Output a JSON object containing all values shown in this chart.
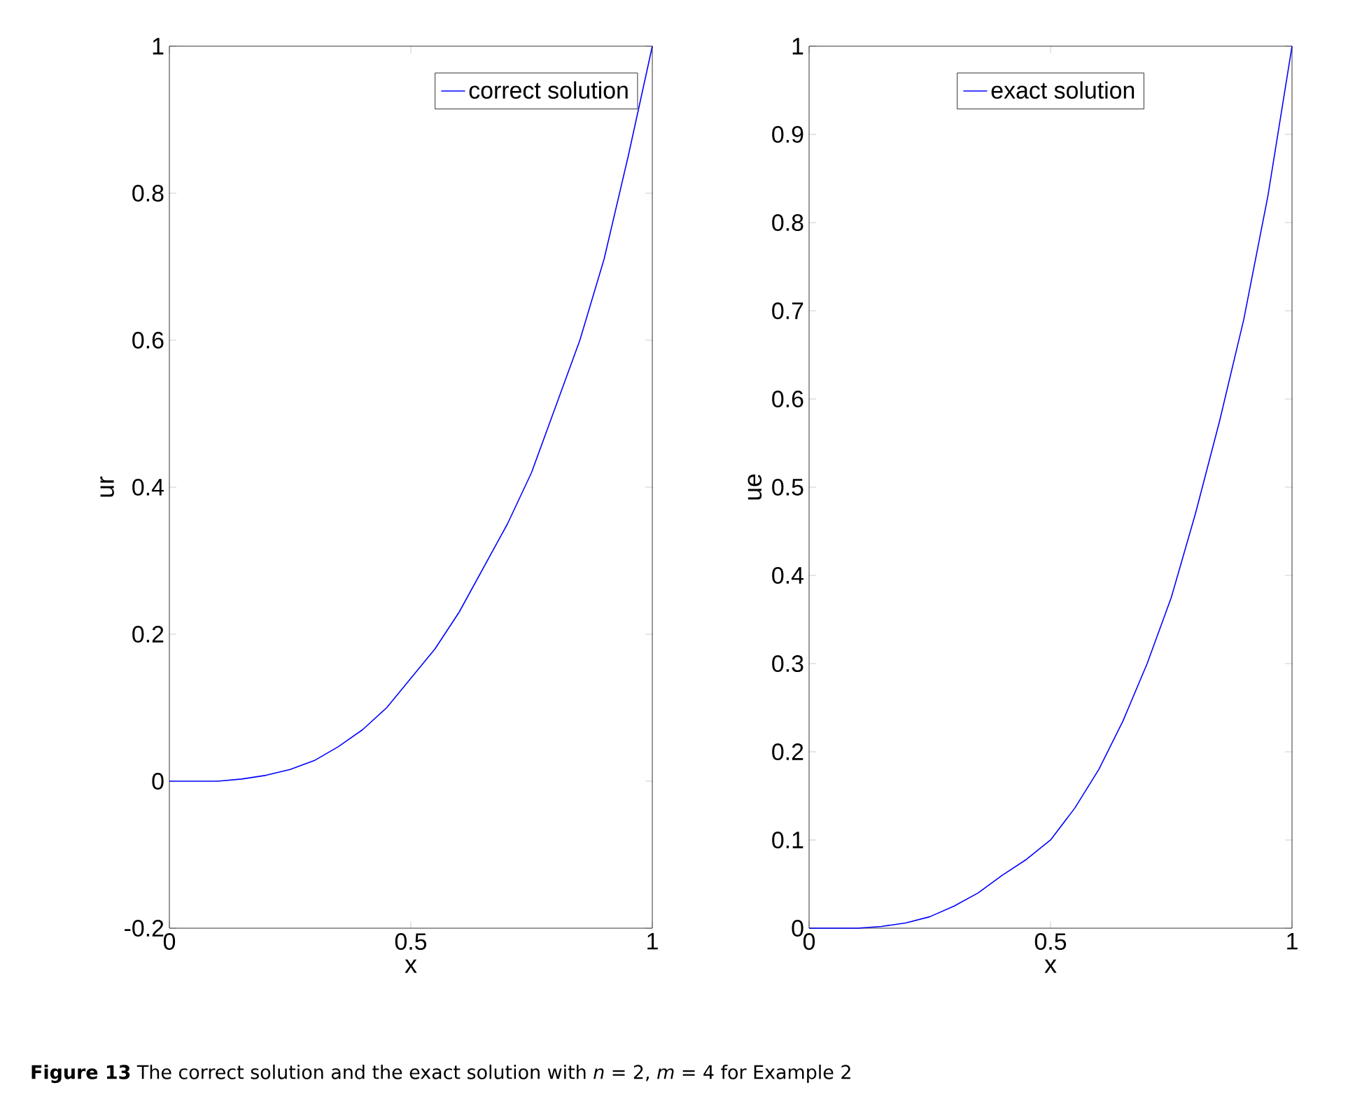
{
  "chart_data": [
    {
      "type": "line",
      "xlabel": "x",
      "ylabel": "ur",
      "xlim": [
        0,
        1
      ],
      "ylim": [
        -0.2,
        1
      ],
      "xticks": [
        0,
        0.5,
        1
      ],
      "yticks": [
        -0.2,
        0,
        0.2,
        0.4,
        0.6,
        0.8,
        1
      ],
      "legend": "top right",
      "grid": false,
      "marker": "none",
      "line_style": "solid",
      "x": [
        0,
        0.05,
        0.1,
        0.15,
        0.2,
        0.25,
        0.3,
        0.35,
        0.4,
        0.45,
        0.5,
        0.55,
        0.6,
        0.65,
        0.7,
        0.75,
        0.8,
        0.85,
        0.9,
        0.95,
        1
      ],
      "series": [
        {
          "name": "correct solution",
          "color": "#0000ff",
          "values": [
            0,
            0,
            0,
            0.003,
            0.008,
            0.016,
            0.028,
            0.047,
            0.07,
            0.1,
            0.14,
            0.18,
            0.23,
            0.29,
            0.35,
            0.42,
            0.51,
            0.6,
            0.71,
            0.85,
            1
          ]
        }
      ]
    },
    {
      "type": "line",
      "xlabel": "x",
      "ylabel": "ue",
      "xlim": [
        0,
        1
      ],
      "ylim": [
        0,
        1
      ],
      "xticks": [
        0,
        0.5,
        1
      ],
      "yticks": [
        0,
        0.1,
        0.2,
        0.3,
        0.4,
        0.5,
        0.6,
        0.7,
        0.8,
        0.9,
        1
      ],
      "legend": "top",
      "grid": false,
      "marker": "none",
      "line_style": "solid",
      "x": [
        0,
        0.05,
        0.1,
        0.15,
        0.2,
        0.25,
        0.3,
        0.35,
        0.4,
        0.45,
        0.5,
        0.55,
        0.6,
        0.65,
        0.7,
        0.75,
        0.8,
        0.85,
        0.9,
        0.95,
        1
      ],
      "series": [
        {
          "name": "exact solution",
          "color": "#0000ff",
          "values": [
            0,
            0,
            0,
            0.002,
            0.006,
            0.013,
            0.025,
            0.04,
            0.06,
            0.078,
            0.1,
            0.136,
            0.18,
            0.235,
            0.3,
            0.375,
            0.47,
            0.575,
            0.69,
            0.83,
            1
          ]
        }
      ],
      "annotations": [
        "**Figure 13** The correct solution and the exact solution with *n* = 2, *m* = 4 for Example 2"
      ]
    }
  ]
}
